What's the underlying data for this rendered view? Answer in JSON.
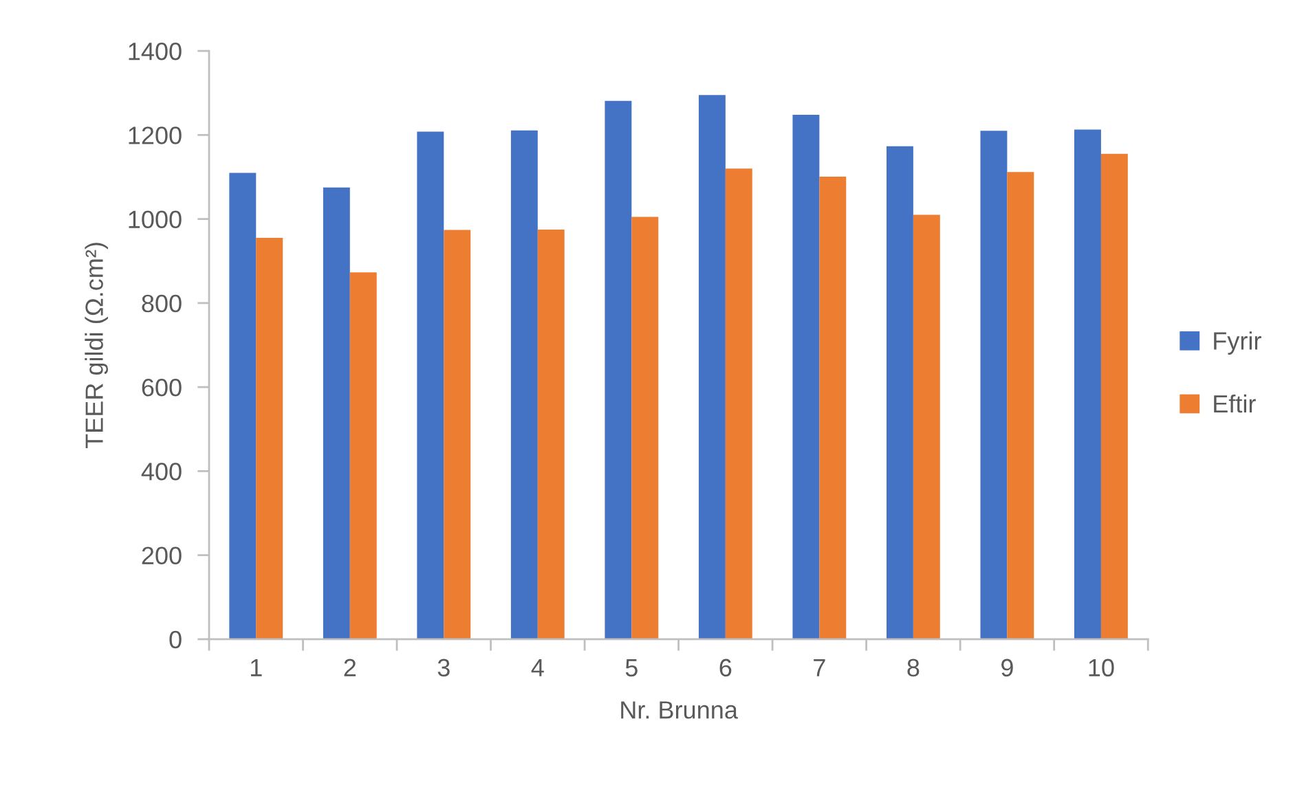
{
  "chart_data": {
    "type": "bar",
    "xlabel": "Nr. Brunna",
    "ylabel": "TEER gildi (Ω.cm²)",
    "categories": [
      "1",
      "2",
      "3",
      "4",
      "5",
      "6",
      "7",
      "8",
      "9",
      "10"
    ],
    "series": [
      {
        "name": "Fyrir",
        "color": "#4472c4",
        "values": [
          1110,
          1075,
          1208,
          1211,
          1281,
          1295,
          1248,
          1173,
          1210,
          1213
        ]
      },
      {
        "name": "Eftir",
        "color": "#ed7d31",
        "values": [
          955,
          873,
          974,
          975,
          1005,
          1120,
          1101,
          1010,
          1112,
          1155
        ]
      }
    ],
    "ylim": [
      0,
      1400
    ],
    "yticks": [
      0,
      200,
      400,
      600,
      800,
      1000,
      1200,
      1400
    ],
    "legend": "right"
  }
}
